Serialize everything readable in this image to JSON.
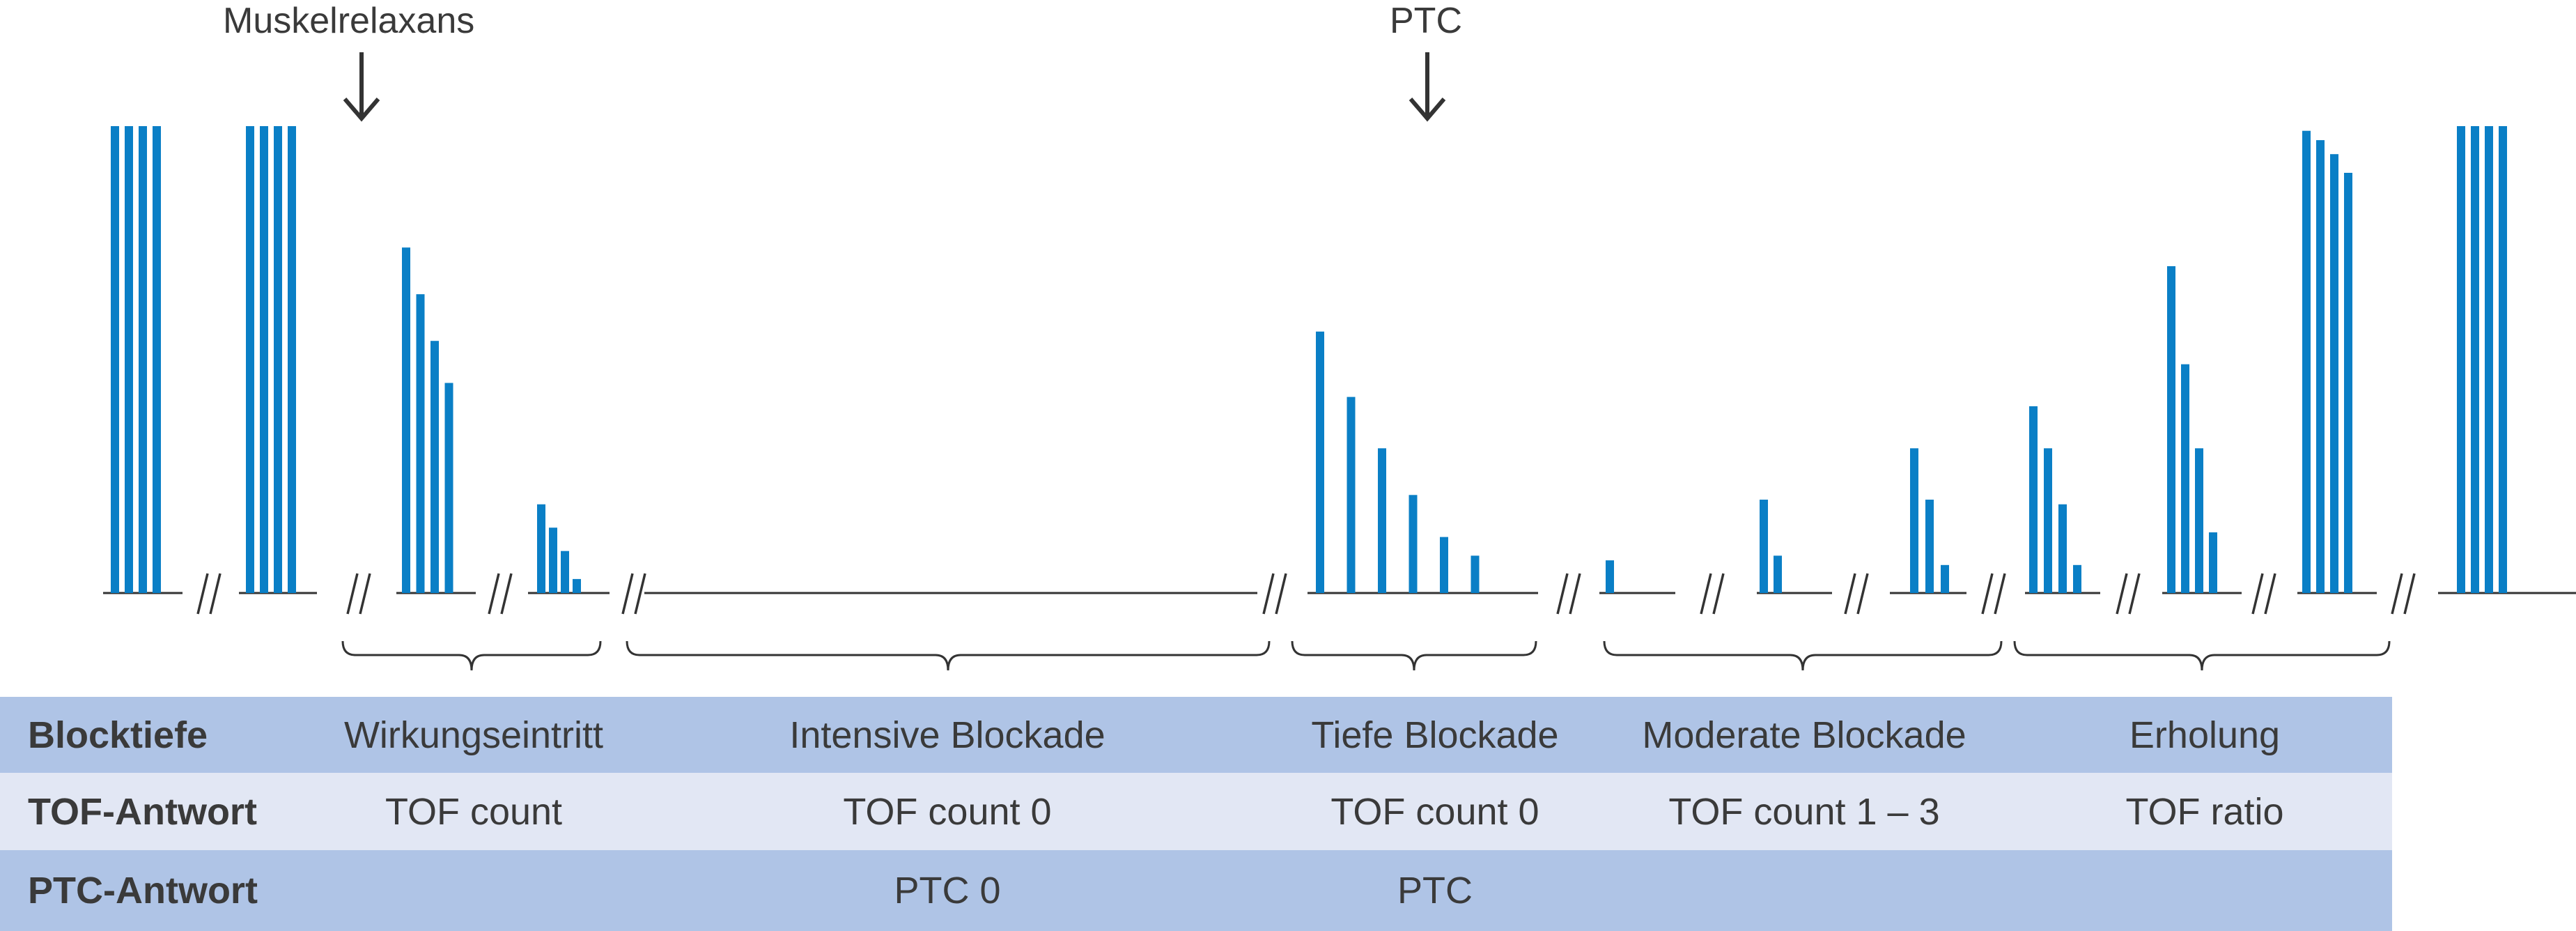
{
  "arrows": {
    "muscle_relaxant": "Muskelrelaxans",
    "ptc": "PTC"
  },
  "colors": {
    "bar": "#0a7fc6",
    "line": "#333333",
    "row_dark": "#afc4e6",
    "row_light": "#e2e7f4"
  },
  "table": {
    "row_headers": [
      "Blocktiefe",
      "TOF-Antwort",
      "PTC-Antwort"
    ],
    "phases": [
      {
        "block": "Wirkungseintritt",
        "tof": "TOF count",
        "ptc": ""
      },
      {
        "block": "Intensive Blockade",
        "tof": "TOF count 0",
        "ptc": "PTC 0"
      },
      {
        "block": "Tiefe Blockade",
        "tof": "TOF count 0",
        "ptc": "PTC"
      },
      {
        "block": "Moderate Blockade",
        "tof": "TOF count 1 – 3",
        "ptc": ""
      },
      {
        "block": "Erholung",
        "tof": "TOF ratio",
        "ptc": ""
      }
    ]
  },
  "chart_data": {
    "type": "bar",
    "groups": [
      {
        "name": "baseline-1",
        "values": [
          1.0,
          1.0,
          1.0,
          1.0
        ]
      },
      {
        "name": "baseline-2",
        "values": [
          1.0,
          1.0,
          1.0,
          1.0
        ]
      },
      {
        "name": "onset-1",
        "values": [
          0.74,
          0.64,
          0.54,
          0.45
        ]
      },
      {
        "name": "onset-2",
        "values": [
          0.19,
          0.14,
          0.09,
          0.03
        ]
      },
      {
        "name": "ptc-response",
        "values": [
          0.56,
          0.42,
          0.31,
          0.21,
          0.12,
          0.08
        ]
      },
      {
        "name": "moderate-1",
        "values": [
          0.07
        ]
      },
      {
        "name": "moderate-2",
        "values": [
          0.2,
          0.08
        ]
      },
      {
        "name": "moderate-3",
        "values": [
          0.31,
          0.2,
          0.06
        ]
      },
      {
        "name": "recovery-1",
        "values": [
          0.4,
          0.31,
          0.19,
          0.06
        ]
      },
      {
        "name": "recovery-2",
        "values": [
          0.7,
          0.49,
          0.31,
          0.13
        ]
      },
      {
        "name": "recovery-3",
        "values": [
          0.99,
          0.97,
          0.94,
          0.9
        ]
      },
      {
        "name": "recovery-4",
        "values": [
          1.0,
          1.0,
          1.0,
          1.0
        ]
      }
    ]
  }
}
